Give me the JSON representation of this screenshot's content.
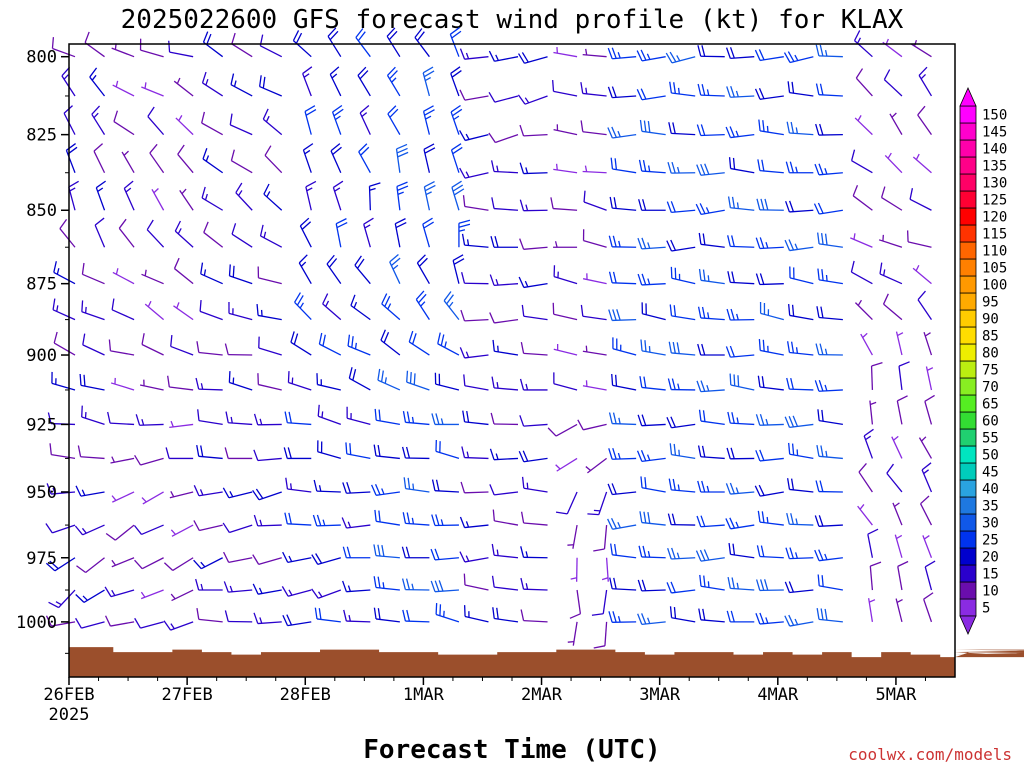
{
  "chart_data": {
    "type": "wind-barb profile",
    "title": "2025022600 GFS forecast wind profile (kt) for KLAX",
    "xlabel": "Forecast Time (UTC)",
    "ylabel": "",
    "credit": "coolwx.com/models",
    "x_ticks": [
      "26FEB",
      "27FEB",
      "28FEB",
      "1MAR",
      "2MAR",
      "3MAR",
      "4MAR",
      "5MAR"
    ],
    "x_year": "2025",
    "y_ticks": [
      800,
      825,
      850,
      875,
      900,
      925,
      950,
      975,
      1000
    ],
    "ylim_hpa": [
      796,
      1022
    ],
    "x_days_range": [
      0,
      7.5
    ],
    "y_scale": "log-pressure (inverted)",
    "levels_hpa": [
      800,
      812.5,
      825,
      837.5,
      850,
      862.5,
      875,
      887.5,
      900,
      912.5,
      925,
      937.5,
      950,
      962.5,
      975,
      987.5,
      1000,
      1012.5
    ],
    "time_step_hours": 6,
    "wind_speed_colorbar": {
      "units": "kt",
      "labels": [
        5,
        10,
        15,
        20,
        25,
        30,
        35,
        40,
        45,
        50,
        55,
        60,
        65,
        70,
        75,
        80,
        85,
        90,
        95,
        100,
        105,
        110,
        115,
        120,
        125,
        130,
        135,
        140,
        145,
        150
      ],
      "colors": [
        "#8a2be2",
        "#6a0dad",
        "#2a00cc",
        "#0000cd",
        "#0033ee",
        "#1058e8",
        "#1e78e0",
        "#2aa3e0",
        "#00ccbb",
        "#00e5c0",
        "#20d070",
        "#33dd33",
        "#55ee22",
        "#88ee22",
        "#bbee11",
        "#eeee00",
        "#ffdd00",
        "#ffcc00",
        "#ffaa00",
        "#ff9900",
        "#ff8000",
        "#ff6600",
        "#ff3300",
        "#ff0000",
        "#ff0033",
        "#ff0066",
        "#ff0088",
        "#ff00aa",
        "#ff00cc",
        "#ff00ff"
      ]
    },
    "terrain_color": "#9b4f2c",
    "surface_pressure_hpa": [
      1010,
      1010,
      1012,
      1012,
      1011,
      1012,
      1013,
      1012,
      1012,
      1011,
      1011,
      1012,
      1012,
      1013,
      1013,
      1012,
      1012,
      1011,
      1011,
      1012,
      1013,
      1012,
      1012,
      1013,
      1012,
      1013,
      1012,
      1014,
      1012,
      1013,
      1014,
      1012,
      1013,
      1013,
      1012,
      1011,
      1012,
      1013,
      1012,
      1013,
      1013,
      1012,
      1012,
      1012,
      1014
    ],
    "regimes": [
      {
        "t": [
          0.0,
          0.4
        ],
        "dir_by_level": [
          300,
          320,
          330,
          340,
          350,
          330,
          290,
          290,
          300,
          290,
          280,
          270,
          260,
          250,
          240,
          230,
          250,
          260
        ],
        "spd": 15
      },
      {
        "t": [
          0.4,
          1.2
        ],
        "dir_by_level": [
          290,
          300,
          310,
          320,
          330,
          320,
          300,
          300,
          290,
          280,
          270,
          260,
          250,
          240,
          240,
          250,
          260,
          270
        ],
        "spd": 10
      },
      {
        "t": [
          1.2,
          2.0
        ],
        "dir_by_level": [
          300,
          300,
          300,
          310,
          310,
          300,
          290,
          290,
          280,
          280,
          270,
          270,
          260,
          260,
          250,
          260,
          270,
          280
        ],
        "spd": 15
      },
      {
        "t": [
          2.0,
          2.6
        ],
        "dir_by_level": [
          320,
          330,
          340,
          340,
          350,
          340,
          320,
          310,
          300,
          290,
          280,
          280,
          270,
          270,
          260,
          260,
          270,
          280
        ],
        "spd": 20
      },
      {
        "t": [
          2.6,
          3.3
        ],
        "dir_by_level": [
          330,
          335,
          340,
          345,
          350,
          350,
          340,
          320,
          300,
          290,
          280,
          280,
          270,
          270,
          270,
          275,
          280,
          290
        ],
        "spd": 25
      },
      {
        "t": [
          3.3,
          4.2
        ],
        "dir_by_level": [
          260,
          260,
          260,
          265,
          270,
          270,
          270,
          270,
          270,
          270,
          270,
          270,
          270,
          270,
          270,
          275,
          280,
          280
        ],
        "spd": 15
      },
      {
        "t": [
          4.2,
          4.6
        ],
        "dir_by_level": [
          270,
          275,
          280,
          280,
          280,
          280,
          280,
          280,
          285,
          290,
          250,
          230,
          200,
          190,
          185,
          180,
          180,
          180
        ],
        "spd": 10
      },
      {
        "t": [
          4.6,
          6.7
        ],
        "dir_by_level": [
          265,
          270,
          270,
          270,
          270,
          270,
          275,
          275,
          275,
          275,
          270,
          270,
          270,
          270,
          270,
          270,
          270,
          270
        ],
        "spd": 25
      },
      {
        "t": [
          6.7,
          7.5
        ],
        "dir_by_level": [
          310,
          320,
          320,
          310,
          300,
          290,
          300,
          320,
          340,
          350,
          350,
          340,
          330,
          330,
          340,
          350,
          350,
          350
        ],
        "spd": 10
      }
    ]
  }
}
